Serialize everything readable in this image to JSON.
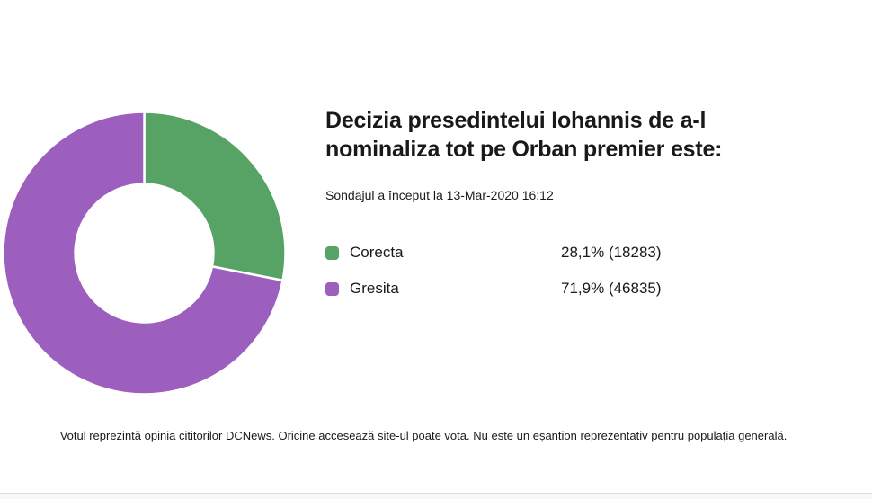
{
  "poll": {
    "title_line1": "Decizia presedintelui Iohannis de a-l",
    "title_line2": "nominaliza tot pe Orban premier este:",
    "subtitle": "Sondajul a început la 13-Mar-2020 16:12",
    "options": [
      {
        "label": "Corecta",
        "value_text": "28,1% (18283)",
        "percent": 28.1,
        "votes": 18283,
        "color": "#57A366"
      },
      {
        "label": "Gresita",
        "value_text": "71,9% (46835)",
        "percent": 71.9,
        "votes": 46835,
        "color": "#9C5FBE"
      }
    ],
    "disclaimer": "Votul reprezintă opinia cititorilor DCNews. Oricine accesează site-ul poate vota. Nu este un eșantion reprezentativ pentru populația generală."
  },
  "chart_data": {
    "type": "pie",
    "donut": true,
    "title": "Decizia presedintelui Iohannis de a-l nominaliza tot pe Orban premier este:",
    "subtitle": "Sondajul a început la 13-Mar-2020 16:12",
    "categories": [
      "Corecta",
      "Gresita"
    ],
    "values": [
      28.1,
      71.9
    ],
    "counts": [
      18283,
      46835
    ],
    "colors": [
      "#57A366",
      "#9C5FBE"
    ],
    "start_angle_deg": 0,
    "direction": "clockwise",
    "inner_radius_ratio": 0.49,
    "slice_gap_color": "#ffffff",
    "legend_position": "right"
  }
}
